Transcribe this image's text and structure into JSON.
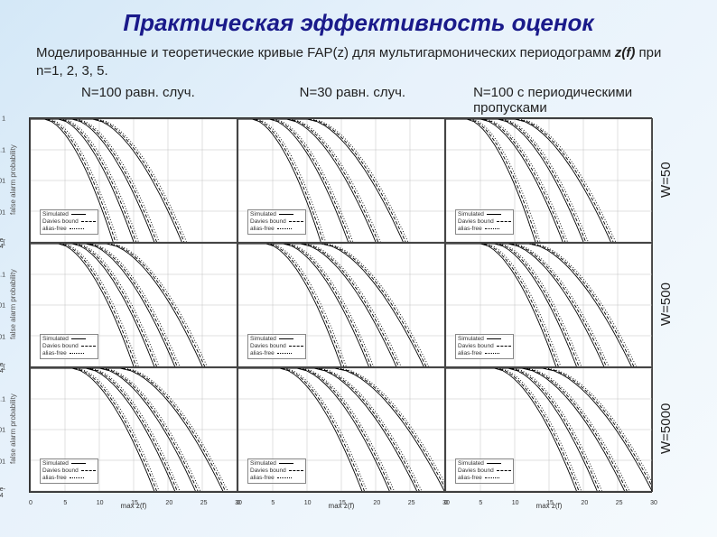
{
  "title": "Практическая эффективность оценок",
  "subtitle_pre": "Моделированные и теоретические кривые FAP(z) для мультигармонических периодограмм ",
  "subtitle_var": "z(f)",
  "subtitle_post": " при n=1, 2, 3, 5.",
  "columns": [
    {
      "label": "N=100 равн. случ."
    },
    {
      "label": "N=30 равн. случ."
    },
    {
      "label": "N=100 с периодическими пропусками"
    }
  ],
  "rows": [
    {
      "label": "W=50"
    },
    {
      "label": "W=500"
    },
    {
      "label": "W=5000"
    }
  ],
  "xaxis": {
    "min": 0,
    "max": 30,
    "ticks": [
      0,
      5,
      10,
      15,
      20,
      25,
      30
    ],
    "label": "max z(f)"
  },
  "yaxis": {
    "type": "log",
    "min_exp": -4,
    "max_exp": 0,
    "ticks_exp": [
      0,
      -1,
      -2,
      -3,
      -4
    ],
    "tick_labels": [
      "1",
      "0.1",
      "0.01",
      "0.001",
      "1e-04"
    ],
    "label": "false alarm probability"
  },
  "style": {
    "background_color": "#ffffff",
    "grid_color": "#bfbfbf",
    "curve_color": "#000000",
    "curve_width": 0.9,
    "title_color": "#1a1a8a",
    "text_color": "#222222",
    "gradient_from": "#d4e8f7",
    "gradient_to": "#f5fafd"
  },
  "legend": {
    "items": [
      {
        "label": "Simulated",
        "style": "solid"
      },
      {
        "label": "Davies bound",
        "style": "dash"
      },
      {
        "label": "alias-free",
        "style": "dot"
      }
    ]
  },
  "panels": [
    [
      {
        "curves": [
          {
            "xhalf": 6,
            "xend": 12
          },
          {
            "xhalf": 8,
            "xend": 15
          },
          {
            "xhalf": 10,
            "xend": 18
          },
          {
            "xhalf": 13,
            "xend": 22
          }
        ]
      },
      {
        "curves": [
          {
            "xhalf": 6,
            "xend": 12
          },
          {
            "xhalf": 8.5,
            "xend": 16
          },
          {
            "xhalf": 11,
            "xend": 20
          },
          {
            "xhalf": 14,
            "xend": 24
          }
        ]
      },
      {
        "curves": [
          {
            "xhalf": 7,
            "xend": 13
          },
          {
            "xhalf": 9,
            "xend": 17
          },
          {
            "xhalf": 11.5,
            "xend": 20
          },
          {
            "xhalf": 14,
            "xend": 24
          }
        ]
      }
    ],
    [
      {
        "curves": [
          {
            "xhalf": 8,
            "xend": 15
          },
          {
            "xhalf": 10,
            "xend": 18
          },
          {
            "xhalf": 12,
            "xend": 21
          },
          {
            "xhalf": 15,
            "xend": 25
          }
        ]
      },
      {
        "curves": [
          {
            "xhalf": 8,
            "xend": 15
          },
          {
            "xhalf": 10.5,
            "xend": 19
          },
          {
            "xhalf": 13,
            "xend": 23
          },
          {
            "xhalf": 16,
            "xend": 27
          }
        ]
      },
      {
        "curves": [
          {
            "xhalf": 9,
            "xend": 16
          },
          {
            "xhalf": 11,
            "xend": 19
          },
          {
            "xhalf": 13,
            "xend": 23
          },
          {
            "xhalf": 16,
            "xend": 27
          }
        ]
      }
    ],
    [
      {
        "curves": [
          {
            "xhalf": 10,
            "xend": 18
          },
          {
            "xhalf": 12,
            "xend": 21
          },
          {
            "xhalf": 14,
            "xend": 24
          },
          {
            "xhalf": 17,
            "xend": 28
          }
        ]
      },
      {
        "curves": [
          {
            "xhalf": 10,
            "xend": 18
          },
          {
            "xhalf": 12.5,
            "xend": 22
          },
          {
            "xhalf": 15,
            "xend": 26
          },
          {
            "xhalf": 18,
            "xend": 30
          }
        ]
      },
      {
        "curves": [
          {
            "xhalf": 11,
            "xend": 19
          },
          {
            "xhalf": 13,
            "xend": 22
          },
          {
            "xhalf": 15,
            "xend": 26
          },
          {
            "xhalf": 18,
            "xend": 30
          }
        ]
      }
    ]
  ]
}
